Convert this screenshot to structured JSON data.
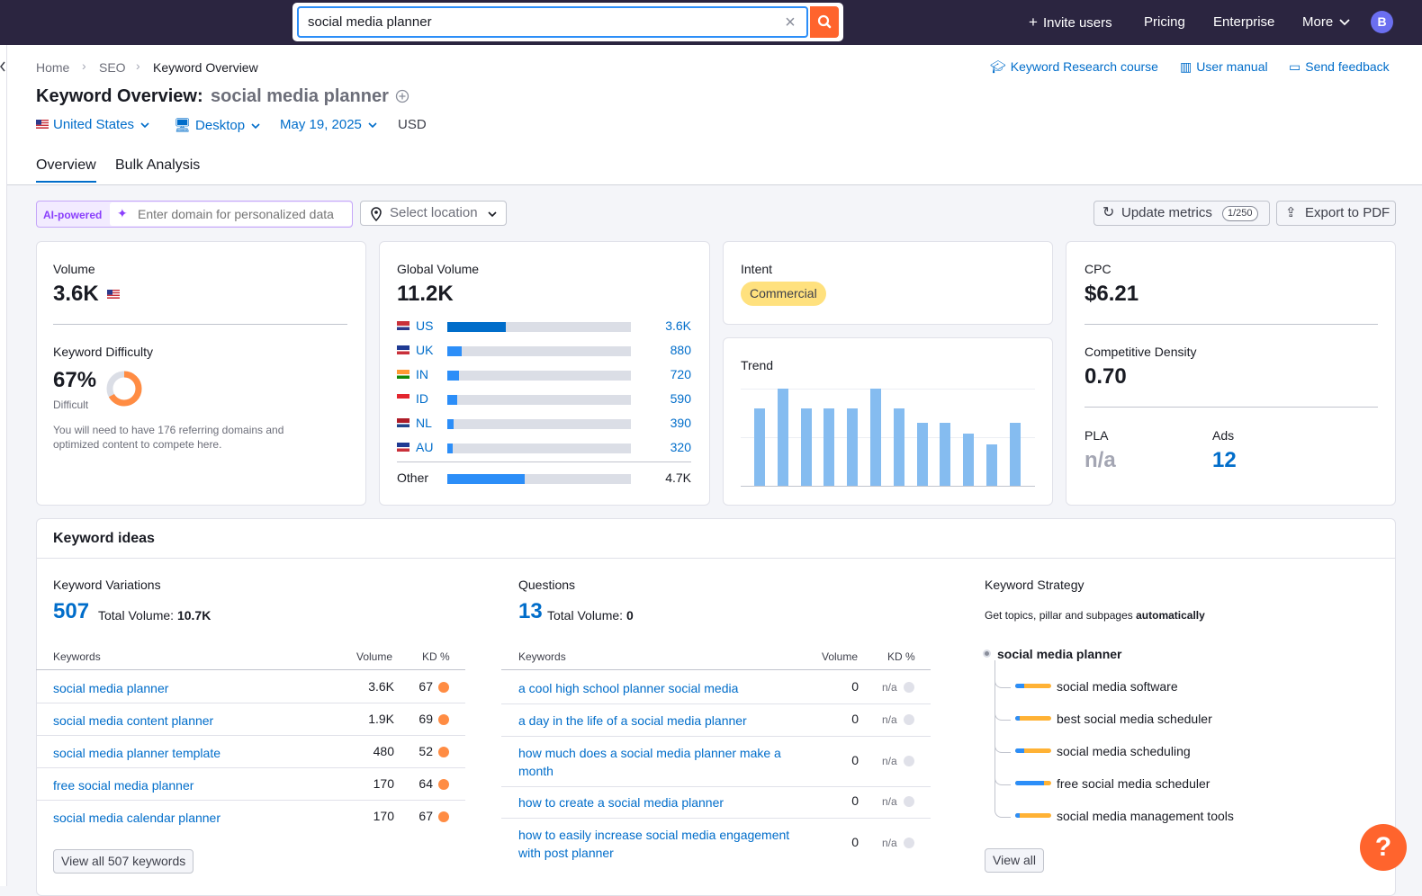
{
  "topbar": {
    "search_value": "social media planner",
    "nav": [
      "Invite users",
      "Pricing",
      "Enterprise",
      "More"
    ],
    "avatar_letter": "B"
  },
  "breadcrumb": [
    "Home",
    "SEO",
    "Keyword Overview"
  ],
  "toplinks": [
    "Keyword Research course",
    "User manual",
    "Send feedback"
  ],
  "title": {
    "prefix": "Keyword Overview:",
    "keyword": "social media planner"
  },
  "filters": {
    "country": "United States",
    "device": "Desktop",
    "date": "May 19, 2025",
    "currency": "USD"
  },
  "tabs": [
    "Overview",
    "Bulk Analysis"
  ],
  "toolbar": {
    "ai_badge": "AI-powered",
    "domain_placeholder": "Enter domain for personalized data",
    "location_placeholder": "Select location",
    "update_label": "Update metrics",
    "update_count": "1/250",
    "export_label": "Export to PDF"
  },
  "volume_card": {
    "label": "Volume",
    "value": "3.6K",
    "kd_label": "Keyword Difficulty",
    "kd_value": "67%",
    "kd_level": "Difficult",
    "kd_percent": 67,
    "kd_note": "You will need to have 176 referring domains and optimized content to compete here."
  },
  "global_card": {
    "label": "Global Volume",
    "value": "11.2K",
    "rows": [
      {
        "code": "US",
        "value": "3.6K",
        "share": 0.32
      },
      {
        "code": "UK",
        "value": "880",
        "share": 0.08
      },
      {
        "code": "IN",
        "value": "720",
        "share": 0.065
      },
      {
        "code": "ID",
        "value": "590",
        "share": 0.053
      },
      {
        "code": "NL",
        "value": "390",
        "share": 0.035
      },
      {
        "code": "AU",
        "value": "320",
        "share": 0.029
      }
    ],
    "other_label": "Other",
    "other_value": "4.7K",
    "other_share": 0.42
  },
  "intent_card": {
    "label": "Intent",
    "value": "Commercial"
  },
  "trend_card": {
    "label": "Trend",
    "chart_data": {
      "type": "bar",
      "values": [
        0.8,
        1.0,
        0.8,
        0.8,
        0.8,
        1.0,
        0.8,
        0.65,
        0.65,
        0.54,
        0.43,
        0.65
      ],
      "ylim": [
        0,
        1
      ]
    }
  },
  "cpc_card": {
    "label": "CPC",
    "value": "$6.21",
    "cd_label": "Competitive Density",
    "cd_value": "0.70",
    "pla_label": "PLA",
    "pla_value": "n/a",
    "ads_label": "Ads",
    "ads_value": "12"
  },
  "ideas": {
    "title": "Keyword ideas",
    "variations": {
      "label": "Keyword Variations",
      "count": "507",
      "total_label": "Total Volume:",
      "total_value": "10.7K",
      "headers": [
        "Keywords",
        "Volume",
        "KD %"
      ],
      "rows": [
        {
          "kw": "social media planner",
          "vol": "3.6K",
          "kd": "67"
        },
        {
          "kw": "social media content planner",
          "vol": "1.9K",
          "kd": "69"
        },
        {
          "kw": "social media planner template",
          "vol": "480",
          "kd": "52"
        },
        {
          "kw": "free social media planner",
          "vol": "170",
          "kd": "64"
        },
        {
          "kw": "social media calendar planner",
          "vol": "170",
          "kd": "67"
        }
      ],
      "view_all": "View all 507 keywords"
    },
    "questions": {
      "label": "Questions",
      "count": "13",
      "total_label": "Total Volume:",
      "total_value": "0",
      "headers": [
        "Keywords",
        "Volume",
        "KD %"
      ],
      "rows": [
        {
          "kw": "a cool high school planner social media",
          "vol": "0",
          "kd": "n/a"
        },
        {
          "kw": "a day in the life of a social media planner",
          "vol": "0",
          "kd": "n/a"
        },
        {
          "kw": "how much does a social media planner make a month",
          "vol": "0",
          "kd": "n/a"
        },
        {
          "kw": "how to create a social media planner",
          "vol": "0",
          "kd": "n/a"
        },
        {
          "kw": "how to easily increase social media engagement with post planner",
          "vol": "0",
          "kd": "n/a"
        }
      ]
    },
    "strategy": {
      "label": "Keyword Strategy",
      "desc_prefix": "Get topics, pillar and subpages",
      "desc_bold": "automatically",
      "root": "social media planner",
      "items": [
        {
          "name": "social media software",
          "share": 0.25
        },
        {
          "name": "best social media scheduler",
          "share": 0.12
        },
        {
          "name": "social media scheduling",
          "share": 0.25
        },
        {
          "name": "free social media scheduler",
          "share": 0.8
        },
        {
          "name": "social media management tools",
          "share": 0.12
        }
      ],
      "view_all": "View all"
    }
  },
  "help": "?"
}
